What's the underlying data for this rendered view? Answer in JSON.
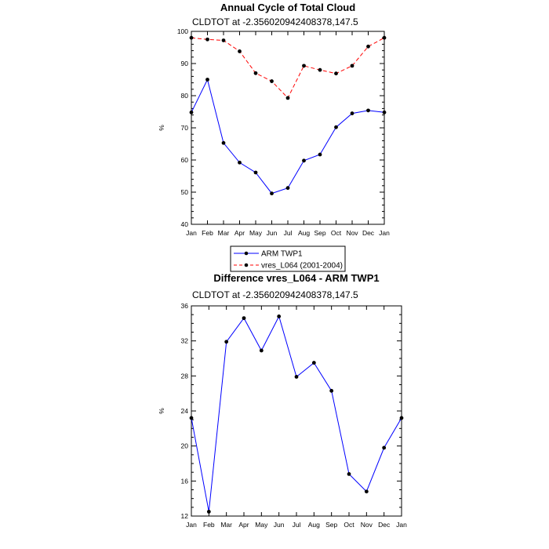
{
  "chart_data": [
    {
      "type": "line",
      "title": "Annual Cycle of Total Cloud",
      "subtitle": "CLDTOT at -2.356020942408378,147.5",
      "ylabel": "%",
      "xlabel": "",
      "categories": [
        "Jan",
        "Feb",
        "Mar",
        "Apr",
        "May",
        "Jun",
        "Jul",
        "Aug",
        "Sep",
        "Oct",
        "Nov",
        "Dec",
        "Jan"
      ],
      "ylim": [
        40,
        100
      ],
      "yticks": [
        40,
        50,
        60,
        70,
        80,
        90,
        100
      ],
      "grid": false,
      "legend": "bottom-center",
      "series": [
        {
          "name": "ARM TWP1",
          "color": "#0000ff",
          "dash": "solid",
          "values": [
            74.8,
            85.0,
            65.3,
            59.2,
            56.1,
            49.6,
            51.3,
            59.8,
            61.7,
            70.2,
            74.5,
            75.4,
            74.8
          ]
        },
        {
          "name": "vres_L064 (2001-2004)",
          "color": "#ff0000",
          "dash": "dashed",
          "values": [
            98.0,
            97.5,
            97.2,
            93.8,
            87.0,
            84.5,
            79.3,
            89.3,
            88.0,
            86.9,
            89.3,
            95.3,
            98.0
          ]
        }
      ]
    },
    {
      "type": "line",
      "title": "Difference vres_L064 - ARM TWP1",
      "subtitle": "CLDTOT at -2.356020942408378,147.5",
      "ylabel": "%",
      "xlabel": "",
      "categories": [
        "Jan",
        "Feb",
        "Mar",
        "Apr",
        "May",
        "Jun",
        "Jul",
        "Aug",
        "Sep",
        "Oct",
        "Nov",
        "Dec",
        "Jan"
      ],
      "ylim": [
        12,
        36
      ],
      "yticks": [
        12,
        16,
        20,
        24,
        28,
        32,
        36
      ],
      "grid": false,
      "series": [
        {
          "color": "#0000ff",
          "dash": "solid",
          "values": [
            23.2,
            12.5,
            31.9,
            34.6,
            30.9,
            34.8,
            27.9,
            29.5,
            26.3,
            16.8,
            14.8,
            19.8,
            23.2
          ]
        }
      ]
    }
  ]
}
